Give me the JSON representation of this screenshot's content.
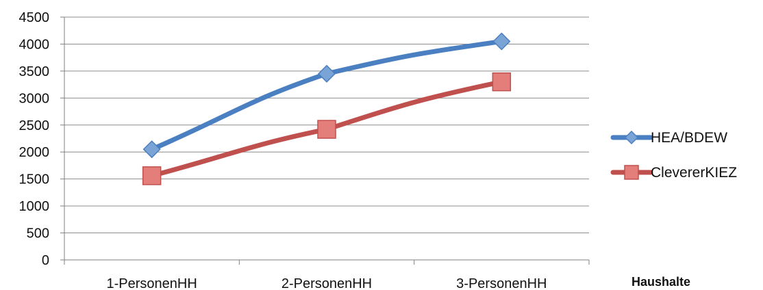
{
  "chart_data": {
    "type": "line",
    "categories": [
      "1-PersonenHH",
      "2-PersonenHH",
      "3-PersonenHH"
    ],
    "series": [
      {
        "name": "HEA/BDEW",
        "values": [
          2050,
          3450,
          4050
        ],
        "color": "#4a7fc1",
        "marker": "diamond"
      },
      {
        "name": "ClevererKIEZ",
        "values": [
          1560,
          2420,
          3300
        ],
        "color": "#c0504d",
        "marker": "square"
      }
    ],
    "xlabel": "Haushalte",
    "ylabel": "",
    "ylim": [
      0,
      4500
    ],
    "yticks": [
      0,
      500,
      1000,
      1500,
      2000,
      2500,
      3000,
      3500,
      4000,
      4500
    ],
    "grid": true,
    "legend_position": "right"
  }
}
